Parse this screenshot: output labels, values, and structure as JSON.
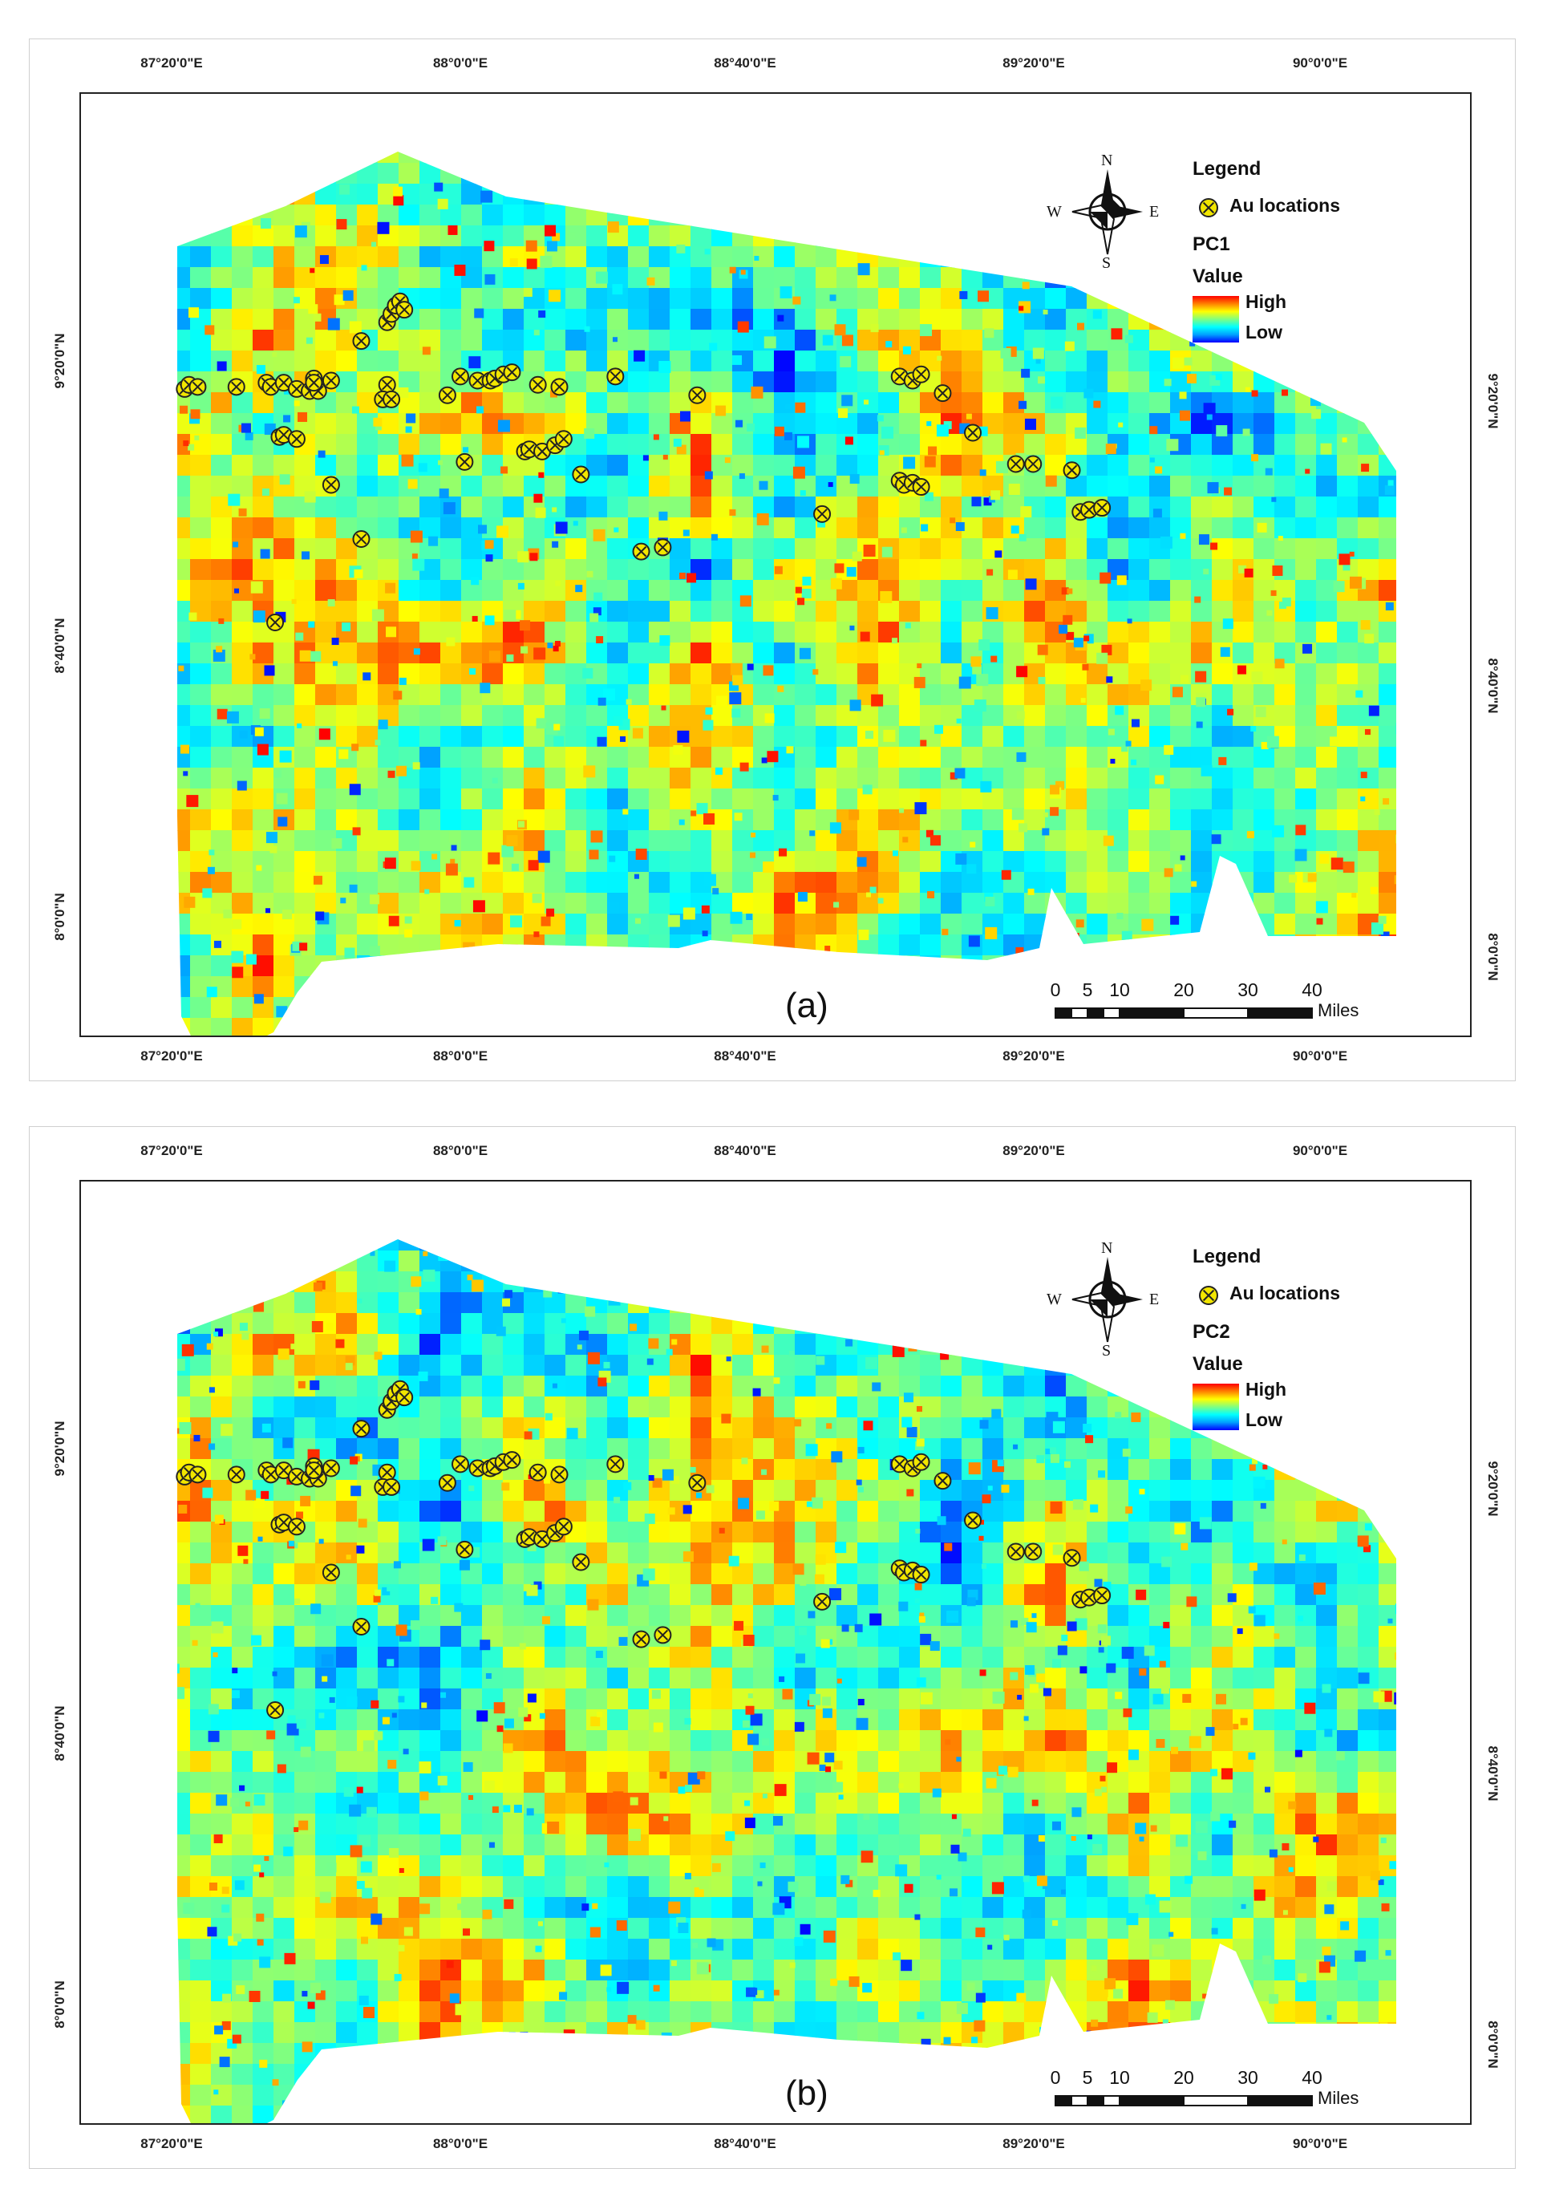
{
  "panels": [
    {
      "id": "a",
      "label": "(a)",
      "legend": {
        "title": "Legend",
        "marker_label": "Au locations",
        "layer_name": "PC1",
        "value_label": "Value",
        "high_label": "High",
        "low_label": "Low"
      },
      "seed": 7
    },
    {
      "id": "b",
      "label": "(b)",
      "legend": {
        "title": "Legend",
        "marker_label": "Au locations",
        "layer_name": "PC2",
        "value_label": "Value",
        "high_label": "High",
        "low_label": "Low"
      },
      "seed": 19
    }
  ],
  "axes": {
    "longitude_ticks": [
      "87°20'0\"E",
      "88°0'0\"E",
      "88°40'0\"E",
      "89°20'0\"E",
      "90°0'0\"E"
    ],
    "latitude_ticks": [
      "9°20'0\"N",
      "8°40'0\"N",
      "8°0'0\"N"
    ]
  },
  "compass": {
    "north": "N",
    "south": "S",
    "east": "E",
    "west": "W"
  },
  "scale_bar": {
    "labels": [
      "0",
      "5",
      "10",
      "20",
      "30",
      "40"
    ],
    "unit": "Miles"
  },
  "colors": {
    "ramp": [
      "#0000ff",
      "#00a0ff",
      "#00ffff",
      "#80ff80",
      "#ffff00",
      "#ff8000",
      "#ff0000"
    ],
    "marker_fill": "#f2e600",
    "marker_stroke": "#222222"
  },
  "au_locations": [
    {
      "lon": 87.36,
      "lat": 9.27
    },
    {
      "lon": 87.37,
      "lat": 9.28
    },
    {
      "lon": 87.39,
      "lat": 9.275
    },
    {
      "lon": 87.48,
      "lat": 9.275
    },
    {
      "lon": 87.55,
      "lat": 9.285
    },
    {
      "lon": 87.56,
      "lat": 9.275
    },
    {
      "lon": 87.59,
      "lat": 9.285
    },
    {
      "lon": 87.62,
      "lat": 9.27
    },
    {
      "lon": 87.65,
      "lat": 9.265
    },
    {
      "lon": 87.67,
      "lat": 9.265
    },
    {
      "lon": 87.66,
      "lat": 9.295
    },
    {
      "lon": 87.66,
      "lat": 9.285
    },
    {
      "lon": 87.7,
      "lat": 9.29
    },
    {
      "lon": 87.77,
      "lat": 9.385
    },
    {
      "lon": 87.83,
      "lat": 9.28
    },
    {
      "lon": 87.83,
      "lat": 9.43
    },
    {
      "lon": 87.84,
      "lat": 9.45
    },
    {
      "lon": 87.85,
      "lat": 9.47
    },
    {
      "lon": 87.86,
      "lat": 9.48
    },
    {
      "lon": 87.87,
      "lat": 9.46
    },
    {
      "lon": 87.82,
      "lat": 9.245
    },
    {
      "lon": 87.84,
      "lat": 9.245
    },
    {
      "lon": 87.97,
      "lat": 9.255
    },
    {
      "lon": 88.0,
      "lat": 9.3
    },
    {
      "lon": 88.04,
      "lat": 9.29
    },
    {
      "lon": 88.07,
      "lat": 9.29
    },
    {
      "lon": 88.08,
      "lat": 9.295
    },
    {
      "lon": 88.1,
      "lat": 9.305
    },
    {
      "lon": 88.12,
      "lat": 9.31
    },
    {
      "lon": 87.58,
      "lat": 9.155
    },
    {
      "lon": 87.59,
      "lat": 9.16
    },
    {
      "lon": 87.62,
      "lat": 9.15
    },
    {
      "lon": 88.01,
      "lat": 9.095
    },
    {
      "lon": 88.15,
      "lat": 9.12
    },
    {
      "lon": 88.16,
      "lat": 9.125
    },
    {
      "lon": 88.19,
      "lat": 9.12
    },
    {
      "lon": 88.22,
      "lat": 9.135
    },
    {
      "lon": 88.24,
      "lat": 9.15
    },
    {
      "lon": 88.18,
      "lat": 9.28
    },
    {
      "lon": 88.23,
      "lat": 9.275
    },
    {
      "lon": 88.28,
      "lat": 9.065
    },
    {
      "lon": 88.36,
      "lat": 9.3
    },
    {
      "lon": 88.55,
      "lat": 9.255
    },
    {
      "lon": 87.7,
      "lat": 9.04
    },
    {
      "lon": 87.77,
      "lat": 8.91
    },
    {
      "lon": 88.42,
      "lat": 8.88
    },
    {
      "lon": 88.47,
      "lat": 8.89
    },
    {
      "lon": 87.57,
      "lat": 8.71
    },
    {
      "lon": 88.84,
      "lat": 8.97
    },
    {
      "lon": 89.02,
      "lat": 9.05
    },
    {
      "lon": 89.03,
      "lat": 9.04
    },
    {
      "lon": 89.05,
      "lat": 9.045
    },
    {
      "lon": 89.07,
      "lat": 9.035
    },
    {
      "lon": 89.02,
      "lat": 9.3
    },
    {
      "lon": 89.05,
      "lat": 9.29
    },
    {
      "lon": 89.07,
      "lat": 9.305
    },
    {
      "lon": 89.12,
      "lat": 9.26
    },
    {
      "lon": 89.19,
      "lat": 9.165
    },
    {
      "lon": 89.29,
      "lat": 9.09
    },
    {
      "lon": 89.33,
      "lat": 9.09
    },
    {
      "lon": 89.42,
      "lat": 9.075
    },
    {
      "lon": 89.44,
      "lat": 8.975
    },
    {
      "lon": 89.46,
      "lat": 8.98
    },
    {
      "lon": 89.49,
      "lat": 8.985
    }
  ]
}
